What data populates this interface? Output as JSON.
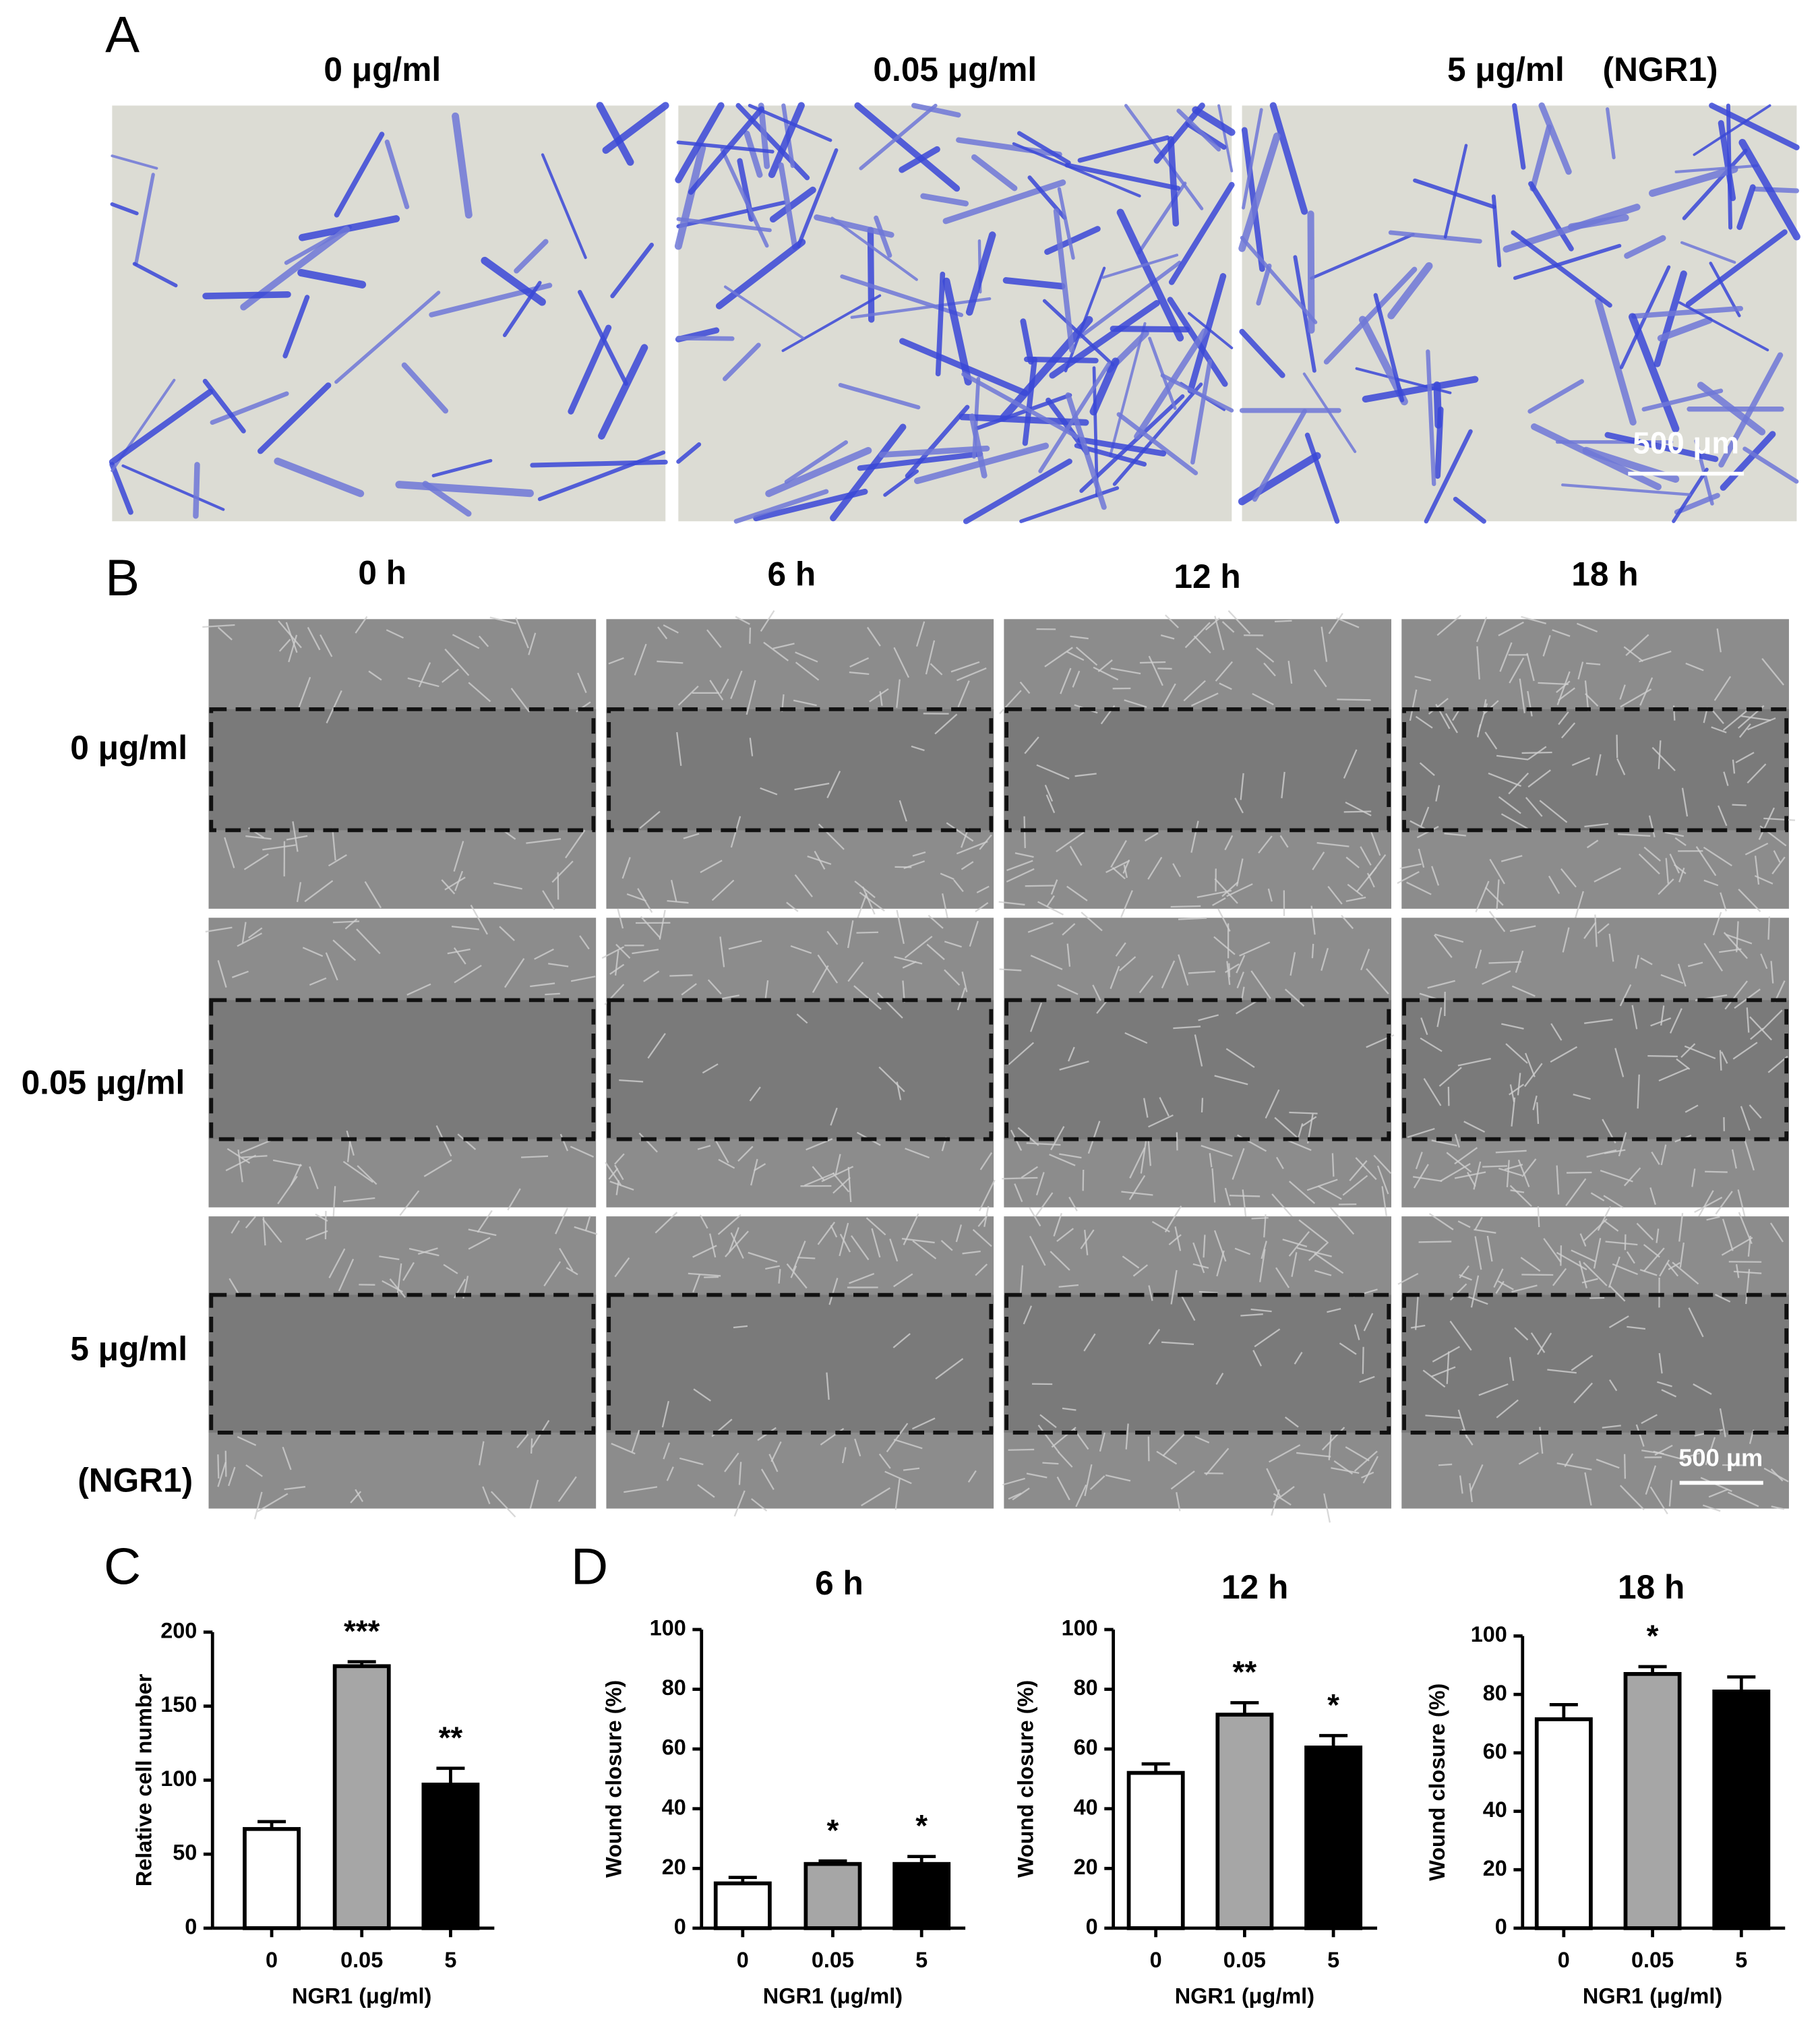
{
  "panel_a": {
    "label": "A",
    "conditions": [
      "0 μg/ml",
      "0.05 μg/ml",
      "5 μg/ml"
    ],
    "group": "(NGR1)",
    "scale_bar": "500 μm"
  },
  "panel_b": {
    "label": "B",
    "times": [
      "0 h",
      "6 h",
      "12 h",
      "18 h"
    ],
    "rows": [
      "0 μg/ml",
      "0.05 μg/ml",
      "5 μg/ml"
    ],
    "group": "(NGR1)",
    "scale_bar": "500 μm"
  },
  "chart_data": [
    {
      "type": "bar",
      "panel_label": "C",
      "y_label": "Relative cell number",
      "x_label": "NGR1 (μg/ml)",
      "categories": [
        "0",
        "0.05",
        "5"
      ],
      "values": [
        67,
        177,
        97
      ],
      "errors": [
        5,
        3,
        11
      ],
      "annotations": [
        null,
        "***",
        "**"
      ],
      "colors": [
        "#ffffff",
        "#a6a6a6",
        "#000000"
      ],
      "ylim": [
        0,
        200
      ],
      "yticks": [
        0,
        50,
        100,
        150,
        200
      ]
    },
    {
      "type": "bar",
      "panel_label": "D",
      "title": "6 h",
      "y_label": "Wound closure (%)",
      "x_label": "NGR1 (μg/ml)",
      "categories": [
        "0",
        "0.05",
        "5"
      ],
      "values": [
        15,
        21.5,
        21.5
      ],
      "errors": [
        2,
        1,
        2.5
      ],
      "annotations": [
        null,
        "*",
        "*"
      ],
      "colors": [
        "#ffffff",
        "#a6a6a6",
        "#000000"
      ],
      "ylim": [
        0,
        100
      ],
      "yticks": [
        0,
        20,
        40,
        60,
        80,
        100
      ]
    },
    {
      "type": "bar",
      "title": "12 h",
      "y_label": "Wound closure (%)",
      "x_label": "NGR1 (μg/ml)",
      "categories": [
        "0",
        "0.05",
        "5"
      ],
      "values": [
        52,
        71.5,
        60.5
      ],
      "errors": [
        3,
        4,
        4
      ],
      "annotations": [
        null,
        "**",
        "*"
      ],
      "colors": [
        "#ffffff",
        "#a6a6a6",
        "#000000"
      ],
      "ylim": [
        0,
        100
      ],
      "yticks": [
        0,
        20,
        40,
        60,
        80,
        100
      ]
    },
    {
      "type": "bar",
      "title": "18 h",
      "y_label": "Wound closure (%)",
      "x_label": "NGR1 (μg/ml)",
      "categories": [
        "0",
        "0.05",
        "5"
      ],
      "values": [
        71.5,
        87,
        81
      ],
      "errors": [
        5,
        2.5,
        5
      ],
      "annotations": [
        null,
        "*",
        null
      ],
      "colors": [
        "#ffffff",
        "#a6a6a6",
        "#000000"
      ],
      "ylim": [
        0,
        100
      ],
      "yticks": [
        0,
        20,
        40,
        60,
        80,
        100
      ]
    }
  ]
}
